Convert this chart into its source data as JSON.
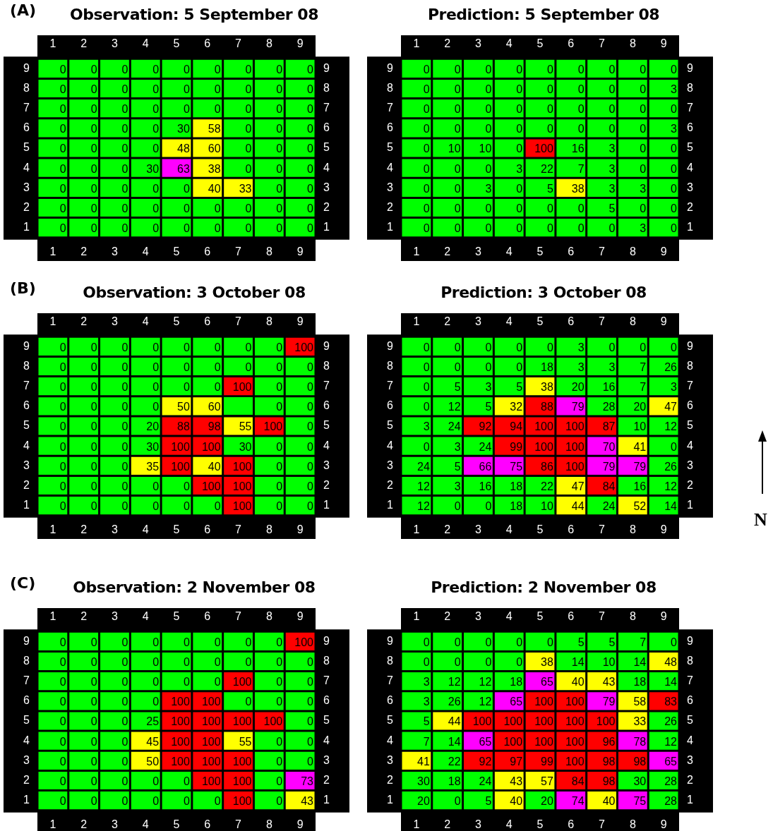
{
  "chart_data": [
    {
      "type": "heatmap",
      "title": "Observation: 5 September 08",
      "annotations": [
        "(A)"
      ],
      "data_labels": true,
      "categories": [
        "1",
        "2",
        "3",
        "4",
        "5",
        "6",
        "7",
        "8",
        "9"
      ],
      "y_categories": [
        "9",
        "8",
        "7",
        "6",
        "5",
        "4",
        "3",
        "2",
        "1"
      ],
      "y2_categories": [
        "9",
        "8",
        "7",
        "6",
        "5",
        "4",
        "3",
        "2",
        "1"
      ],
      "cells": [
        [
          0,
          0,
          0,
          0,
          0,
          0,
          0,
          0,
          0
        ],
        [
          0,
          0,
          0,
          0,
          0,
          0,
          0,
          0,
          0
        ],
        [
          0,
          0,
          0,
          0,
          0,
          0,
          0,
          0,
          0
        ],
        [
          0,
          0,
          0,
          0,
          30,
          58,
          0,
          0,
          0
        ],
        [
          0,
          0,
          0,
          0,
          48,
          60,
          0,
          0,
          0
        ],
        [
          0,
          0,
          0,
          30,
          63,
          38,
          0,
          0,
          0
        ],
        [
          0,
          0,
          0,
          0,
          0,
          40,
          33,
          0,
          0
        ],
        [
          0,
          0,
          0,
          0,
          0,
          0,
          0,
          0,
          0
        ],
        [
          0,
          0,
          0,
          0,
          0,
          0,
          0,
          0,
          0
        ]
      ],
      "colors": [
        [
          "#00ff00",
          "#00ff00",
          "#00ff00",
          "#00ff00",
          "#00ff00",
          "#00ff00",
          "#00ff00",
          "#00ff00",
          "#00ff00"
        ],
        [
          "#00ff00",
          "#00ff00",
          "#00ff00",
          "#00ff00",
          "#00ff00",
          "#00ff00",
          "#00ff00",
          "#00ff00",
          "#00ff00"
        ],
        [
          "#00ff00",
          "#00ff00",
          "#00ff00",
          "#00ff00",
          "#00ff00",
          "#00ff00",
          "#00ff00",
          "#00ff00",
          "#00ff00"
        ],
        [
          "#00ff00",
          "#00ff00",
          "#00ff00",
          "#00ff00",
          "#00ff00",
          "#ffff00",
          "#00ff00",
          "#00ff00",
          "#00ff00"
        ],
        [
          "#00ff00",
          "#00ff00",
          "#00ff00",
          "#00ff00",
          "#ffff00",
          "#ffff00",
          "#00ff00",
          "#00ff00",
          "#00ff00"
        ],
        [
          "#00ff00",
          "#00ff00",
          "#00ff00",
          "#00ff00",
          "#ff00ff",
          "#ffff00",
          "#00ff00",
          "#00ff00",
          "#00ff00"
        ],
        [
          "#00ff00",
          "#00ff00",
          "#00ff00",
          "#00ff00",
          "#00ff00",
          "#ffff00",
          "#ffff00",
          "#00ff00",
          "#00ff00"
        ],
        [
          "#00ff00",
          "#00ff00",
          "#00ff00",
          "#00ff00",
          "#00ff00",
          "#00ff00",
          "#00ff00",
          "#00ff00",
          "#00ff00"
        ],
        [
          "#00ff00",
          "#00ff00",
          "#00ff00",
          "#00ff00",
          "#00ff00",
          "#00ff00",
          "#00ff00",
          "#00ff00",
          "#00ff00"
        ]
      ]
    },
    {
      "type": "heatmap",
      "title": "Prediction: 5 September 08",
      "data_labels": true,
      "categories": [
        "1",
        "2",
        "3",
        "4",
        "5",
        "6",
        "7",
        "8",
        "9"
      ],
      "y_categories": [
        "9",
        "8",
        "7",
        "6",
        "5",
        "4",
        "3",
        "2",
        "1"
      ],
      "y2_categories": [
        "9",
        "8",
        "7",
        "6",
        "5",
        "4",
        "3",
        "2",
        "1"
      ],
      "cells": [
        [
          0,
          0,
          0,
          0,
          0,
          0,
          0,
          0,
          0
        ],
        [
          0,
          0,
          0,
          0,
          0,
          0,
          0,
          0,
          3
        ],
        [
          0,
          0,
          0,
          0,
          0,
          0,
          0,
          0,
          0
        ],
        [
          0,
          0,
          0,
          0,
          0,
          0,
          0,
          0,
          3
        ],
        [
          0,
          10,
          10,
          0,
          100,
          16,
          3,
          0,
          0
        ],
        [
          0,
          0,
          0,
          3,
          22,
          7,
          3,
          0,
          0
        ],
        [
          0,
          0,
          3,
          0,
          5,
          38,
          3,
          3,
          0
        ],
        [
          0,
          0,
          0,
          0,
          0,
          0,
          5,
          0,
          0
        ],
        [
          0,
          0,
          0,
          0,
          0,
          0,
          0,
          3,
          0
        ]
      ],
      "colors": [
        [
          "#00ff00",
          "#00ff00",
          "#00ff00",
          "#00ff00",
          "#00ff00",
          "#00ff00",
          "#00ff00",
          "#00ff00",
          "#00ff00"
        ],
        [
          "#00ff00",
          "#00ff00",
          "#00ff00",
          "#00ff00",
          "#00ff00",
          "#00ff00",
          "#00ff00",
          "#00ff00",
          "#00ff00"
        ],
        [
          "#00ff00",
          "#00ff00",
          "#00ff00",
          "#00ff00",
          "#00ff00",
          "#00ff00",
          "#00ff00",
          "#00ff00",
          "#00ff00"
        ],
        [
          "#00ff00",
          "#00ff00",
          "#00ff00",
          "#00ff00",
          "#00ff00",
          "#00ff00",
          "#00ff00",
          "#00ff00",
          "#00ff00"
        ],
        [
          "#00ff00",
          "#00ff00",
          "#00ff00",
          "#00ff00",
          "#ff0000",
          "#00ff00",
          "#00ff00",
          "#00ff00",
          "#00ff00"
        ],
        [
          "#00ff00",
          "#00ff00",
          "#00ff00",
          "#00ff00",
          "#00ff00",
          "#00ff00",
          "#00ff00",
          "#00ff00",
          "#00ff00"
        ],
        [
          "#00ff00",
          "#00ff00",
          "#00ff00",
          "#00ff00",
          "#00ff00",
          "#ffff00",
          "#00ff00",
          "#00ff00",
          "#00ff00"
        ],
        [
          "#00ff00",
          "#00ff00",
          "#00ff00",
          "#00ff00",
          "#00ff00",
          "#00ff00",
          "#00ff00",
          "#00ff00",
          "#00ff00"
        ],
        [
          "#00ff00",
          "#00ff00",
          "#00ff00",
          "#00ff00",
          "#00ff00",
          "#00ff00",
          "#00ff00",
          "#00ff00",
          "#00ff00"
        ]
      ]
    },
    {
      "type": "heatmap",
      "title": "Observation: 3 October 08",
      "annotations": [
        "(B)"
      ],
      "data_labels": true,
      "categories": [
        "1",
        "2",
        "3",
        "4",
        "5",
        "6",
        "7",
        "8",
        "9"
      ],
      "y_categories": [
        "9",
        "8",
        "7",
        "6",
        "5",
        "4",
        "3",
        "2",
        "1"
      ],
      "y2_categories": [
        "9",
        "8",
        "7",
        "6",
        "5",
        "4",
        "3",
        "2",
        "1"
      ],
      "cells": [
        [
          0,
          0,
          0,
          0,
          0,
          0,
          0,
          0,
          100
        ],
        [
          0,
          0,
          0,
          0,
          0,
          0,
          0,
          0,
          0
        ],
        [
          0,
          0,
          0,
          0,
          0,
          0,
          100,
          0,
          0
        ],
        [
          0,
          0,
          0,
          0,
          50,
          60,
          null,
          0,
          0
        ],
        [
          0,
          0,
          0,
          20,
          88,
          98,
          55,
          100,
          0
        ],
        [
          0,
          0,
          0,
          30,
          100,
          100,
          30,
          0,
          0
        ],
        [
          0,
          0,
          0,
          35,
          100,
          40,
          100,
          0,
          0
        ],
        [
          0,
          0,
          0,
          0,
          0,
          100,
          100,
          0,
          0
        ],
        [
          0,
          0,
          0,
          0,
          0,
          0,
          100,
          0,
          0
        ]
      ],
      "colors": [
        [
          "#00ff00",
          "#00ff00",
          "#00ff00",
          "#00ff00",
          "#00ff00",
          "#00ff00",
          "#00ff00",
          "#00ff00",
          "#ff0000"
        ],
        [
          "#00ff00",
          "#00ff00",
          "#00ff00",
          "#00ff00",
          "#00ff00",
          "#00ff00",
          "#00ff00",
          "#00ff00",
          "#00ff00"
        ],
        [
          "#00ff00",
          "#00ff00",
          "#00ff00",
          "#00ff00",
          "#00ff00",
          "#00ff00",
          "#ff0000",
          "#00ff00",
          "#00ff00"
        ],
        [
          "#00ff00",
          "#00ff00",
          "#00ff00",
          "#00ff00",
          "#ffff00",
          "#ffff00",
          "#00ff00",
          "#00ff00",
          "#00ff00"
        ],
        [
          "#00ff00",
          "#00ff00",
          "#00ff00",
          "#00ff00",
          "#ff0000",
          "#ff0000",
          "#ffff00",
          "#ff0000",
          "#00ff00"
        ],
        [
          "#00ff00",
          "#00ff00",
          "#00ff00",
          "#00ff00",
          "#ff0000",
          "#ff0000",
          "#00ff00",
          "#00ff00",
          "#00ff00"
        ],
        [
          "#00ff00",
          "#00ff00",
          "#00ff00",
          "#ffff00",
          "#ff0000",
          "#ffff00",
          "#ff0000",
          "#00ff00",
          "#00ff00"
        ],
        [
          "#00ff00",
          "#00ff00",
          "#00ff00",
          "#00ff00",
          "#00ff00",
          "#ff0000",
          "#ff0000",
          "#00ff00",
          "#00ff00"
        ],
        [
          "#00ff00",
          "#00ff00",
          "#00ff00",
          "#00ff00",
          "#00ff00",
          "#00ff00",
          "#ff0000",
          "#00ff00",
          "#00ff00"
        ]
      ]
    },
    {
      "type": "heatmap",
      "title": "Prediction: 3 October 08",
      "annotations": [
        "N"
      ],
      "data_labels": true,
      "categories": [
        "1",
        "2",
        "3",
        "4",
        "5",
        "6",
        "7",
        "8",
        "9"
      ],
      "y_categories": [
        "9",
        "8",
        "7",
        "6",
        "5",
        "4",
        "3",
        "2",
        "1"
      ],
      "y2_categories": [
        "9",
        "8",
        "7",
        "6",
        "5",
        "4",
        "3",
        "2",
        "1"
      ],
      "cells": [
        [
          0,
          0,
          0,
          0,
          0,
          3,
          0,
          0,
          0
        ],
        [
          0,
          0,
          0,
          0,
          18,
          3,
          3,
          7,
          26
        ],
        [
          0,
          5,
          3,
          5,
          38,
          20,
          16,
          7,
          3
        ],
        [
          0,
          12,
          5,
          32,
          88,
          79,
          28,
          20,
          47
        ],
        [
          3,
          24,
          92,
          94,
          100,
          100,
          87,
          10,
          12
        ],
        [
          0,
          3,
          24,
          99,
          100,
          100,
          70,
          41,
          0
        ],
        [
          24,
          5,
          66,
          75,
          86,
          100,
          79,
          79,
          26
        ],
        [
          12,
          3,
          16,
          18,
          22,
          47,
          84,
          16,
          12
        ],
        [
          12,
          0,
          0,
          18,
          10,
          44,
          24,
          52,
          14
        ]
      ],
      "colors": [
        [
          "#00ff00",
          "#00ff00",
          "#00ff00",
          "#00ff00",
          "#00ff00",
          "#00ff00",
          "#00ff00",
          "#00ff00",
          "#00ff00"
        ],
        [
          "#00ff00",
          "#00ff00",
          "#00ff00",
          "#00ff00",
          "#00ff00",
          "#00ff00",
          "#00ff00",
          "#00ff00",
          "#00ff00"
        ],
        [
          "#00ff00",
          "#00ff00",
          "#00ff00",
          "#00ff00",
          "#ffff00",
          "#00ff00",
          "#00ff00",
          "#00ff00",
          "#00ff00"
        ],
        [
          "#00ff00",
          "#00ff00",
          "#00ff00",
          "#ffff00",
          "#ff0000",
          "#ff00ff",
          "#00ff00",
          "#00ff00",
          "#ffff00"
        ],
        [
          "#00ff00",
          "#00ff00",
          "#ff0000",
          "#ff0000",
          "#ff0000",
          "#ff0000",
          "#ff0000",
          "#00ff00",
          "#00ff00"
        ],
        [
          "#00ff00",
          "#00ff00",
          "#00ff00",
          "#ff0000",
          "#ff0000",
          "#ff0000",
          "#ff00ff",
          "#ffff00",
          "#00ff00"
        ],
        [
          "#00ff00",
          "#00ff00",
          "#ff00ff",
          "#ff00ff",
          "#ff0000",
          "#ff0000",
          "#ff00ff",
          "#ff00ff",
          "#00ff00"
        ],
        [
          "#00ff00",
          "#00ff00",
          "#00ff00",
          "#00ff00",
          "#00ff00",
          "#ffff00",
          "#ff0000",
          "#00ff00",
          "#00ff00"
        ],
        [
          "#00ff00",
          "#00ff00",
          "#00ff00",
          "#00ff00",
          "#00ff00",
          "#ffff00",
          "#00ff00",
          "#ffff00",
          "#00ff00"
        ]
      ]
    },
    {
      "type": "heatmap",
      "title": "Observation: 2 November 08",
      "annotations": [
        "(C)"
      ],
      "data_labels": true,
      "categories": [
        "1",
        "2",
        "3",
        "4",
        "5",
        "6",
        "7",
        "8",
        "9"
      ],
      "y_categories": [
        "9",
        "8",
        "7",
        "6",
        "5",
        "4",
        "3",
        "2",
        "1"
      ],
      "y2_categories": [
        "9",
        "8",
        "7",
        "6",
        "5",
        "4",
        "3",
        "2",
        "1"
      ],
      "cells": [
        [
          0,
          0,
          0,
          0,
          0,
          0,
          0,
          0,
          100
        ],
        [
          0,
          0,
          0,
          0,
          0,
          0,
          0,
          0,
          0
        ],
        [
          0,
          0,
          0,
          0,
          0,
          0,
          100,
          0,
          0
        ],
        [
          0,
          0,
          0,
          0,
          100,
          100,
          0,
          0,
          0
        ],
        [
          0,
          0,
          0,
          25,
          100,
          100,
          100,
          100,
          0
        ],
        [
          0,
          0,
          0,
          45,
          100,
          100,
          55,
          0,
          0
        ],
        [
          0,
          0,
          0,
          50,
          100,
          100,
          100,
          0,
          0
        ],
        [
          0,
          0,
          0,
          0,
          0,
          100,
          100,
          0,
          73
        ],
        [
          0,
          0,
          0,
          0,
          0,
          0,
          100,
          0,
          43
        ]
      ],
      "colors": [
        [
          "#00ff00",
          "#00ff00",
          "#00ff00",
          "#00ff00",
          "#00ff00",
          "#00ff00",
          "#00ff00",
          "#00ff00",
          "#ff0000"
        ],
        [
          "#00ff00",
          "#00ff00",
          "#00ff00",
          "#00ff00",
          "#00ff00",
          "#00ff00",
          "#00ff00",
          "#00ff00",
          "#00ff00"
        ],
        [
          "#00ff00",
          "#00ff00",
          "#00ff00",
          "#00ff00",
          "#00ff00",
          "#00ff00",
          "#ff0000",
          "#00ff00",
          "#00ff00"
        ],
        [
          "#00ff00",
          "#00ff00",
          "#00ff00",
          "#00ff00",
          "#ff0000",
          "#ff0000",
          "#00ff00",
          "#00ff00",
          "#00ff00"
        ],
        [
          "#00ff00",
          "#00ff00",
          "#00ff00",
          "#00ff00",
          "#ff0000",
          "#ff0000",
          "#ff0000",
          "#ff0000",
          "#00ff00"
        ],
        [
          "#00ff00",
          "#00ff00",
          "#00ff00",
          "#ffff00",
          "#ff0000",
          "#ff0000",
          "#ffff00",
          "#00ff00",
          "#00ff00"
        ],
        [
          "#00ff00",
          "#00ff00",
          "#00ff00",
          "#ffff00",
          "#ff0000",
          "#ff0000",
          "#ff0000",
          "#00ff00",
          "#00ff00"
        ],
        [
          "#00ff00",
          "#00ff00",
          "#00ff00",
          "#00ff00",
          "#00ff00",
          "#ff0000",
          "#ff0000",
          "#00ff00",
          "#ff00ff"
        ],
        [
          "#00ff00",
          "#00ff00",
          "#00ff00",
          "#00ff00",
          "#00ff00",
          "#00ff00",
          "#ff0000",
          "#00ff00",
          "#ffff00"
        ]
      ]
    },
    {
      "type": "heatmap",
      "title": "Prediction: 2 November 08",
      "data_labels": true,
      "categories": [
        "1",
        "2",
        "3",
        "4",
        "5",
        "6",
        "7",
        "8",
        "9"
      ],
      "y_categories": [
        "9",
        "8",
        "7",
        "6",
        "5",
        "4",
        "3",
        "2",
        "1"
      ],
      "y2_categories": [
        "9",
        "8",
        "7",
        "6",
        "5",
        "4",
        "3",
        "2",
        "1"
      ],
      "cells": [
        [
          0,
          0,
          0,
          0,
          0,
          5,
          5,
          7,
          0
        ],
        [
          0,
          0,
          0,
          0,
          38,
          14,
          10,
          14,
          48
        ],
        [
          3,
          12,
          12,
          18,
          65,
          40,
          43,
          18,
          14
        ],
        [
          3,
          26,
          12,
          65,
          100,
          100,
          79,
          58,
          83
        ],
        [
          5,
          44,
          100,
          100,
          100,
          100,
          100,
          33,
          26
        ],
        [
          7,
          14,
          65,
          100,
          100,
          100,
          96,
          78,
          12
        ],
        [
          41,
          22,
          92,
          97,
          99,
          100,
          98,
          98,
          65
        ],
        [
          30,
          18,
          24,
          43,
          57,
          84,
          98,
          30,
          28
        ],
        [
          20,
          0,
          5,
          40,
          20,
          74,
          40,
          75,
          28
        ]
      ],
      "colors": [
        [
          "#00ff00",
          "#00ff00",
          "#00ff00",
          "#00ff00",
          "#00ff00",
          "#00ff00",
          "#00ff00",
          "#00ff00",
          "#00ff00"
        ],
        [
          "#00ff00",
          "#00ff00",
          "#00ff00",
          "#00ff00",
          "#ffff00",
          "#00ff00",
          "#00ff00",
          "#00ff00",
          "#ffff00"
        ],
        [
          "#00ff00",
          "#00ff00",
          "#00ff00",
          "#00ff00",
          "#ff00ff",
          "#ffff00",
          "#ffff00",
          "#00ff00",
          "#00ff00"
        ],
        [
          "#00ff00",
          "#00ff00",
          "#00ff00",
          "#ff00ff",
          "#ff0000",
          "#ff0000",
          "#ff00ff",
          "#ffff00",
          "#ff0000"
        ],
        [
          "#00ff00",
          "#ffff00",
          "#ff0000",
          "#ff0000",
          "#ff0000",
          "#ff0000",
          "#ff0000",
          "#ffff00",
          "#00ff00"
        ],
        [
          "#00ff00",
          "#00ff00",
          "#ff00ff",
          "#ff0000",
          "#ff0000",
          "#ff0000",
          "#ff0000",
          "#ff00ff",
          "#00ff00"
        ],
        [
          "#ffff00",
          "#00ff00",
          "#ff0000",
          "#ff0000",
          "#ff0000",
          "#ff0000",
          "#ff0000",
          "#ff0000",
          "#ff00ff"
        ],
        [
          "#00ff00",
          "#00ff00",
          "#00ff00",
          "#ffff00",
          "#ffff00",
          "#ff0000",
          "#ff0000",
          "#00ff00",
          "#00ff00"
        ],
        [
          "#00ff00",
          "#00ff00",
          "#00ff00",
          "#ffff00",
          "#00ff00",
          "#ff00ff",
          "#ffff00",
          "#ff00ff",
          "#00ff00"
        ]
      ]
    }
  ]
}
